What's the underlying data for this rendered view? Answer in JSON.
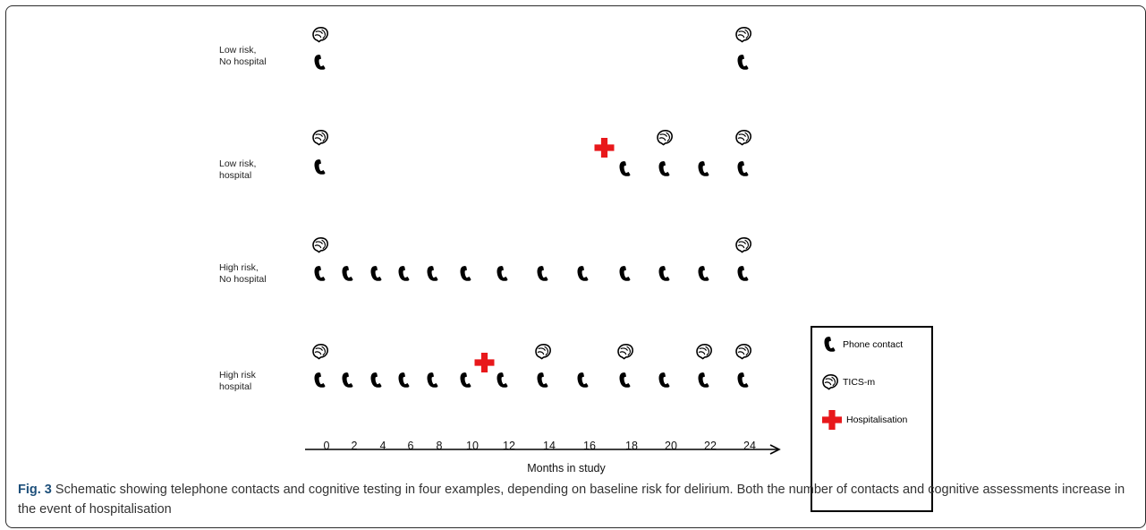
{
  "rows": [
    {
      "label_lines": [
        "Low risk,",
        "No hospital"
      ],
      "phone_months": [
        0,
        24
      ],
      "tics_months": [
        0,
        24
      ],
      "hospital_month": null
    },
    {
      "label_lines": [
        "Low risk,",
        "hospital"
      ],
      "phone_months": [
        0,
        18,
        20,
        22,
        24
      ],
      "tics_months": [
        0,
        20,
        24
      ],
      "hospital_month": 17
    },
    {
      "label_lines": [
        "High risk,",
        "No hospital"
      ],
      "phone_months": [
        0,
        2,
        4,
        6,
        8,
        10,
        12,
        14,
        16,
        18,
        20,
        22,
        24
      ],
      "tics_months": [
        0,
        24
      ],
      "hospital_month": null
    },
    {
      "label_lines": [
        "High risk",
        "hospital"
      ],
      "phone_months": [
        0,
        2,
        4,
        6,
        8,
        10,
        12,
        14,
        16,
        18,
        20,
        22,
        24
      ],
      "tics_months": [
        0,
        14,
        18,
        22,
        24
      ],
      "hospital_month": 11
    }
  ],
  "axis": {
    "ticks": [
      "0",
      "2",
      "4",
      "6",
      "8",
      "10",
      "12",
      "14",
      "16",
      "18",
      "20",
      "22",
      "24"
    ],
    "title": "Months in study"
  },
  "legend": {
    "phone": "Phone contact",
    "tics": "TICS-m",
    "hospital": "Hospitalisation"
  },
  "caption": {
    "label": "Fig. 3",
    "text": " Schematic showing telephone contacts and cognitive testing in four examples, depending on baseline risk for delirium. Both the number of contacts and cognitive assessments increase in the event of hospitalisation"
  },
  "colors": {
    "hospital_cross": "#e8181b",
    "icons": "#000000",
    "caption_label": "#1d4f7a"
  },
  "icons": [
    "phone-icon",
    "brain-icon",
    "hospital-cross-icon"
  ]
}
